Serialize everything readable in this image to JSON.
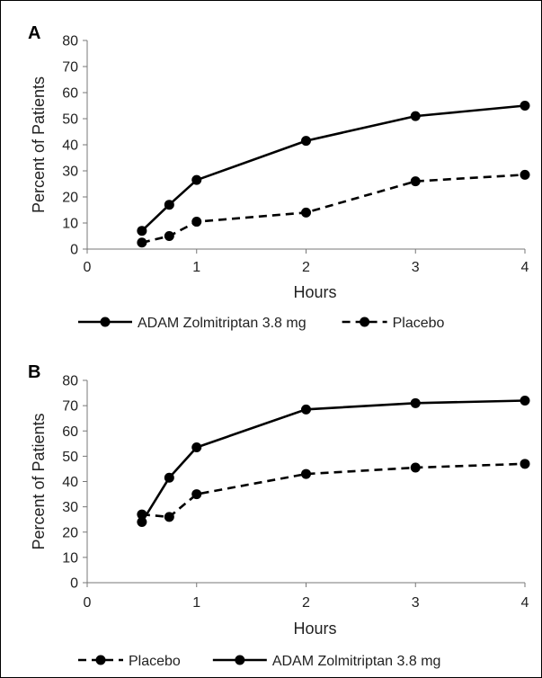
{
  "chart_data": [
    {
      "panel_label": "A",
      "type": "line",
      "xlabel": "Hours",
      "ylabel": "Percent of Patients",
      "xlim": [
        0,
        4
      ],
      "ylim": [
        0,
        80
      ],
      "xticks": [
        0,
        1,
        2,
        3,
        4
      ],
      "yticks": [
        0,
        10,
        20,
        30,
        40,
        50,
        60,
        70,
        80
      ],
      "legend_order": [
        "ADAM Zolmitriptan 3.8 mg",
        "Placebo"
      ],
      "series": [
        {
          "name": "ADAM Zolmitriptan 3.8 mg",
          "style": "solid",
          "x": [
            0.5,
            0.75,
            1,
            2,
            3,
            4
          ],
          "y": [
            7,
            17,
            26.5,
            41.5,
            51,
            55
          ]
        },
        {
          "name": "Placebo",
          "style": "dashed",
          "x": [
            0.5,
            0.75,
            1,
            2,
            3,
            4
          ],
          "y": [
            2.5,
            5,
            10.5,
            14,
            26,
            28.5
          ]
        }
      ]
    },
    {
      "panel_label": "B",
      "type": "line",
      "xlabel": "Hours",
      "ylabel": "Percent of Patients",
      "xlim": [
        0,
        4
      ],
      "ylim": [
        0,
        80
      ],
      "xticks": [
        0,
        1,
        2,
        3,
        4
      ],
      "yticks": [
        0,
        10,
        20,
        30,
        40,
        50,
        60,
        70,
        80
      ],
      "legend_order": [
        "Placebo",
        "ADAM Zolmitriptan 3.8 mg"
      ],
      "series": [
        {
          "name": "ADAM Zolmitriptan 3.8 mg",
          "style": "solid",
          "x": [
            0.5,
            0.75,
            1,
            2,
            3,
            4
          ],
          "y": [
            24,
            41.5,
            53.5,
            68.5,
            71,
            72
          ]
        },
        {
          "name": "Placebo",
          "style": "dashed",
          "x": [
            0.5,
            0.75,
            1,
            2,
            3,
            4
          ],
          "y": [
            27,
            26,
            35,
            43,
            45.5,
            47
          ]
        }
      ]
    }
  ],
  "colors": {
    "line": "#000000",
    "axis": "#777777",
    "text": "#222222"
  }
}
